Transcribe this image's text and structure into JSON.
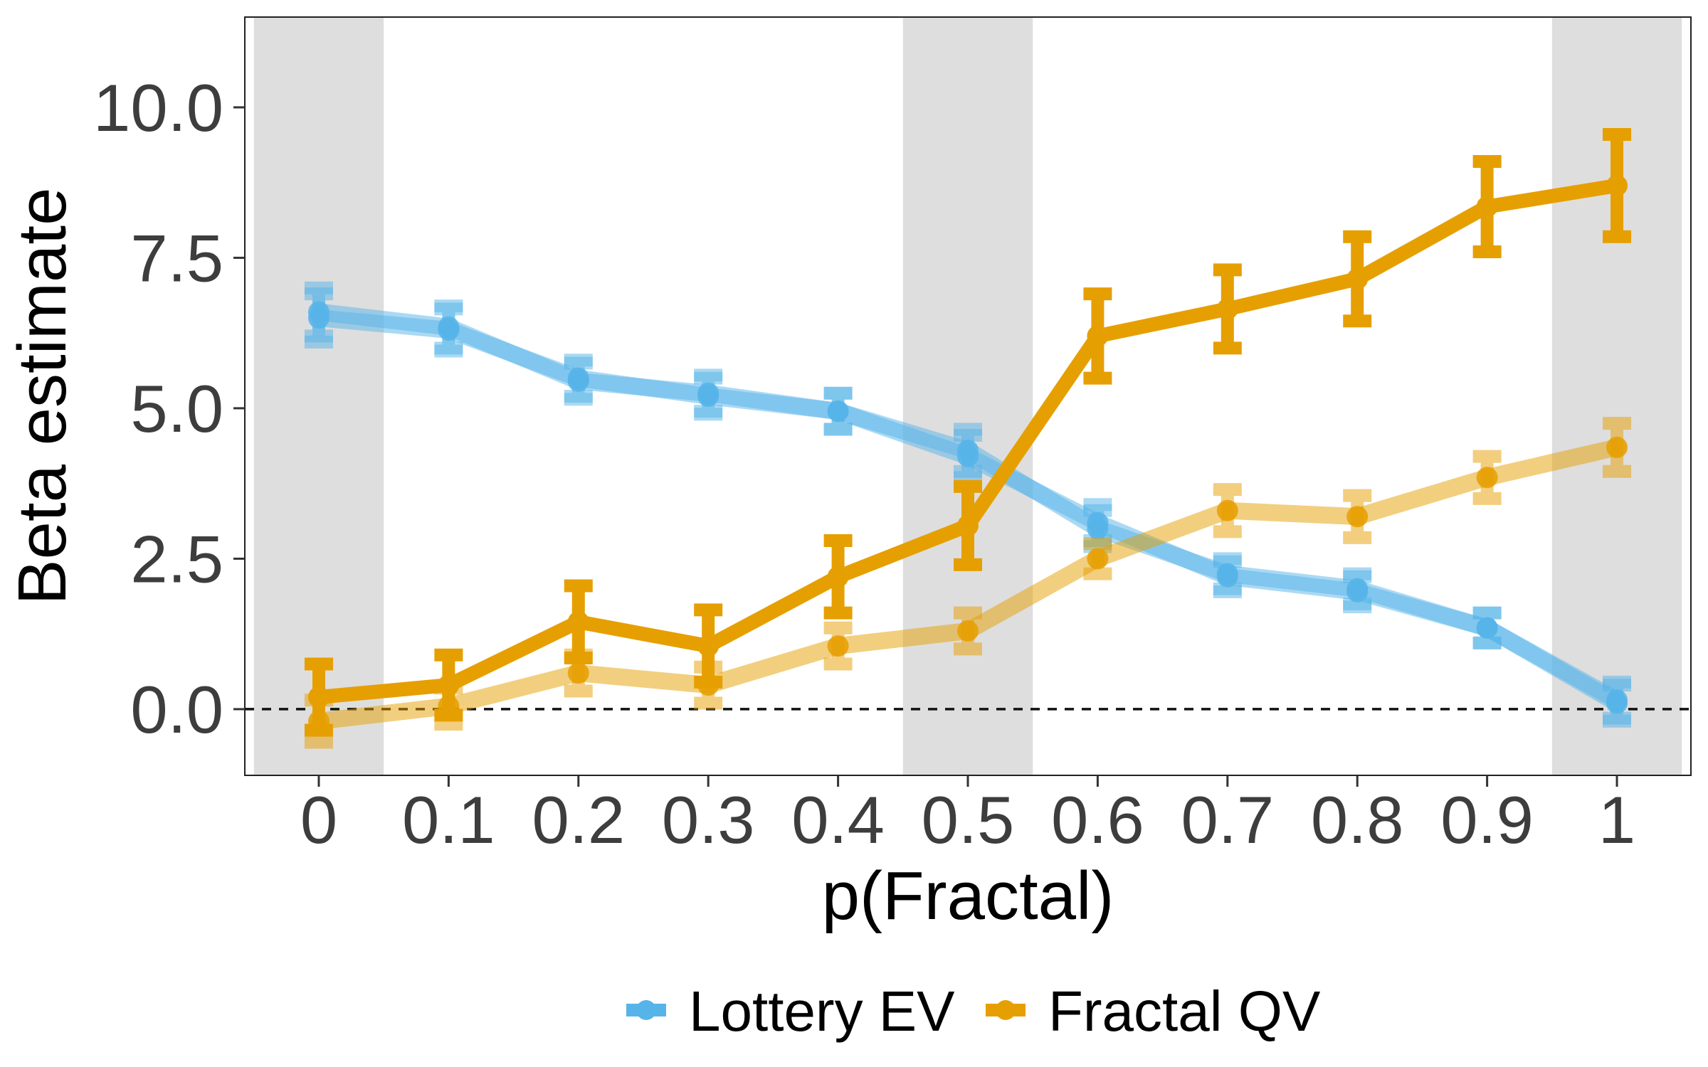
{
  "chart_data": {
    "type": "line",
    "xlabel": "p(Fractal)",
    "ylabel": "Beta estimate",
    "x_ticks": [
      "0",
      "0.1",
      "0.2",
      "0.3",
      "0.4",
      "0.5",
      "0.6",
      "0.7",
      "0.8",
      "0.9",
      "1"
    ],
    "x": [
      0,
      0.1,
      0.2,
      0.3,
      0.4,
      0.5,
      0.6,
      0.7,
      0.8,
      0.9,
      1
    ],
    "y_ticks": [
      "0.0",
      "2.5",
      "5.0",
      "7.5",
      "10.0"
    ],
    "ylim": [
      -1.1,
      11.5
    ],
    "xlim": [
      -0.057,
      1.057
    ],
    "reference_line_y": 0,
    "highlight_bands_x": [
      [
        -0.05,
        0.05
      ],
      [
        0.45,
        0.55
      ],
      [
        0.95,
        1.05
      ]
    ],
    "series": [
      {
        "name": "Lottery EV",
        "group": "lottery",
        "emphasis": "light",
        "color": "#56B4E9",
        "y": [
          6.5,
          6.3,
          5.5,
          5.2,
          4.95,
          4.3,
          3.0,
          2.25,
          2.0,
          1.35,
          0.1
        ],
        "err": [
          0.4,
          0.35,
          0.3,
          0.3,
          0.3,
          0.35,
          0.3,
          0.25,
          0.25,
          0.25,
          0.3
        ]
      },
      {
        "name": "Lottery EV",
        "group": "lottery",
        "emphasis": "light",
        "color": "#56B4E9",
        "y": [
          6.6,
          6.35,
          5.45,
          5.25,
          4.95,
          4.2,
          3.1,
          2.2,
          1.95,
          1.35,
          0.15
        ],
        "err": [
          0.4,
          0.35,
          0.3,
          0.3,
          0.3,
          0.35,
          0.3,
          0.25,
          0.25,
          0.25,
          0.3
        ]
      },
      {
        "name": "Fractal QV",
        "group": "fractal",
        "emphasis": "light",
        "color": "#E69F00",
        "y": [
          -0.2,
          0.05,
          0.6,
          0.4,
          1.05,
          1.3,
          2.5,
          3.3,
          3.2,
          3.85,
          4.35
        ],
        "err": [
          0.35,
          0.3,
          0.3,
          0.3,
          0.3,
          0.3,
          0.25,
          0.35,
          0.35,
          0.35,
          0.4
        ]
      },
      {
        "name": "Fractal QV",
        "group": "fractal",
        "emphasis": "strong",
        "color": "#E69F00",
        "y": [
          0.2,
          0.4,
          1.45,
          1.05,
          2.2,
          3.05,
          6.2,
          6.65,
          7.15,
          8.35,
          8.7
        ],
        "err": [
          0.55,
          0.5,
          0.6,
          0.6,
          0.6,
          0.65,
          0.7,
          0.65,
          0.7,
          0.75,
          0.85
        ]
      }
    ],
    "legend": {
      "placement": "bottom",
      "items": [
        {
          "label": "Lottery EV",
          "color": "#56B4E9"
        },
        {
          "label": "Fractal QV",
          "color": "#E69F00"
        }
      ]
    },
    "grid": false
  }
}
